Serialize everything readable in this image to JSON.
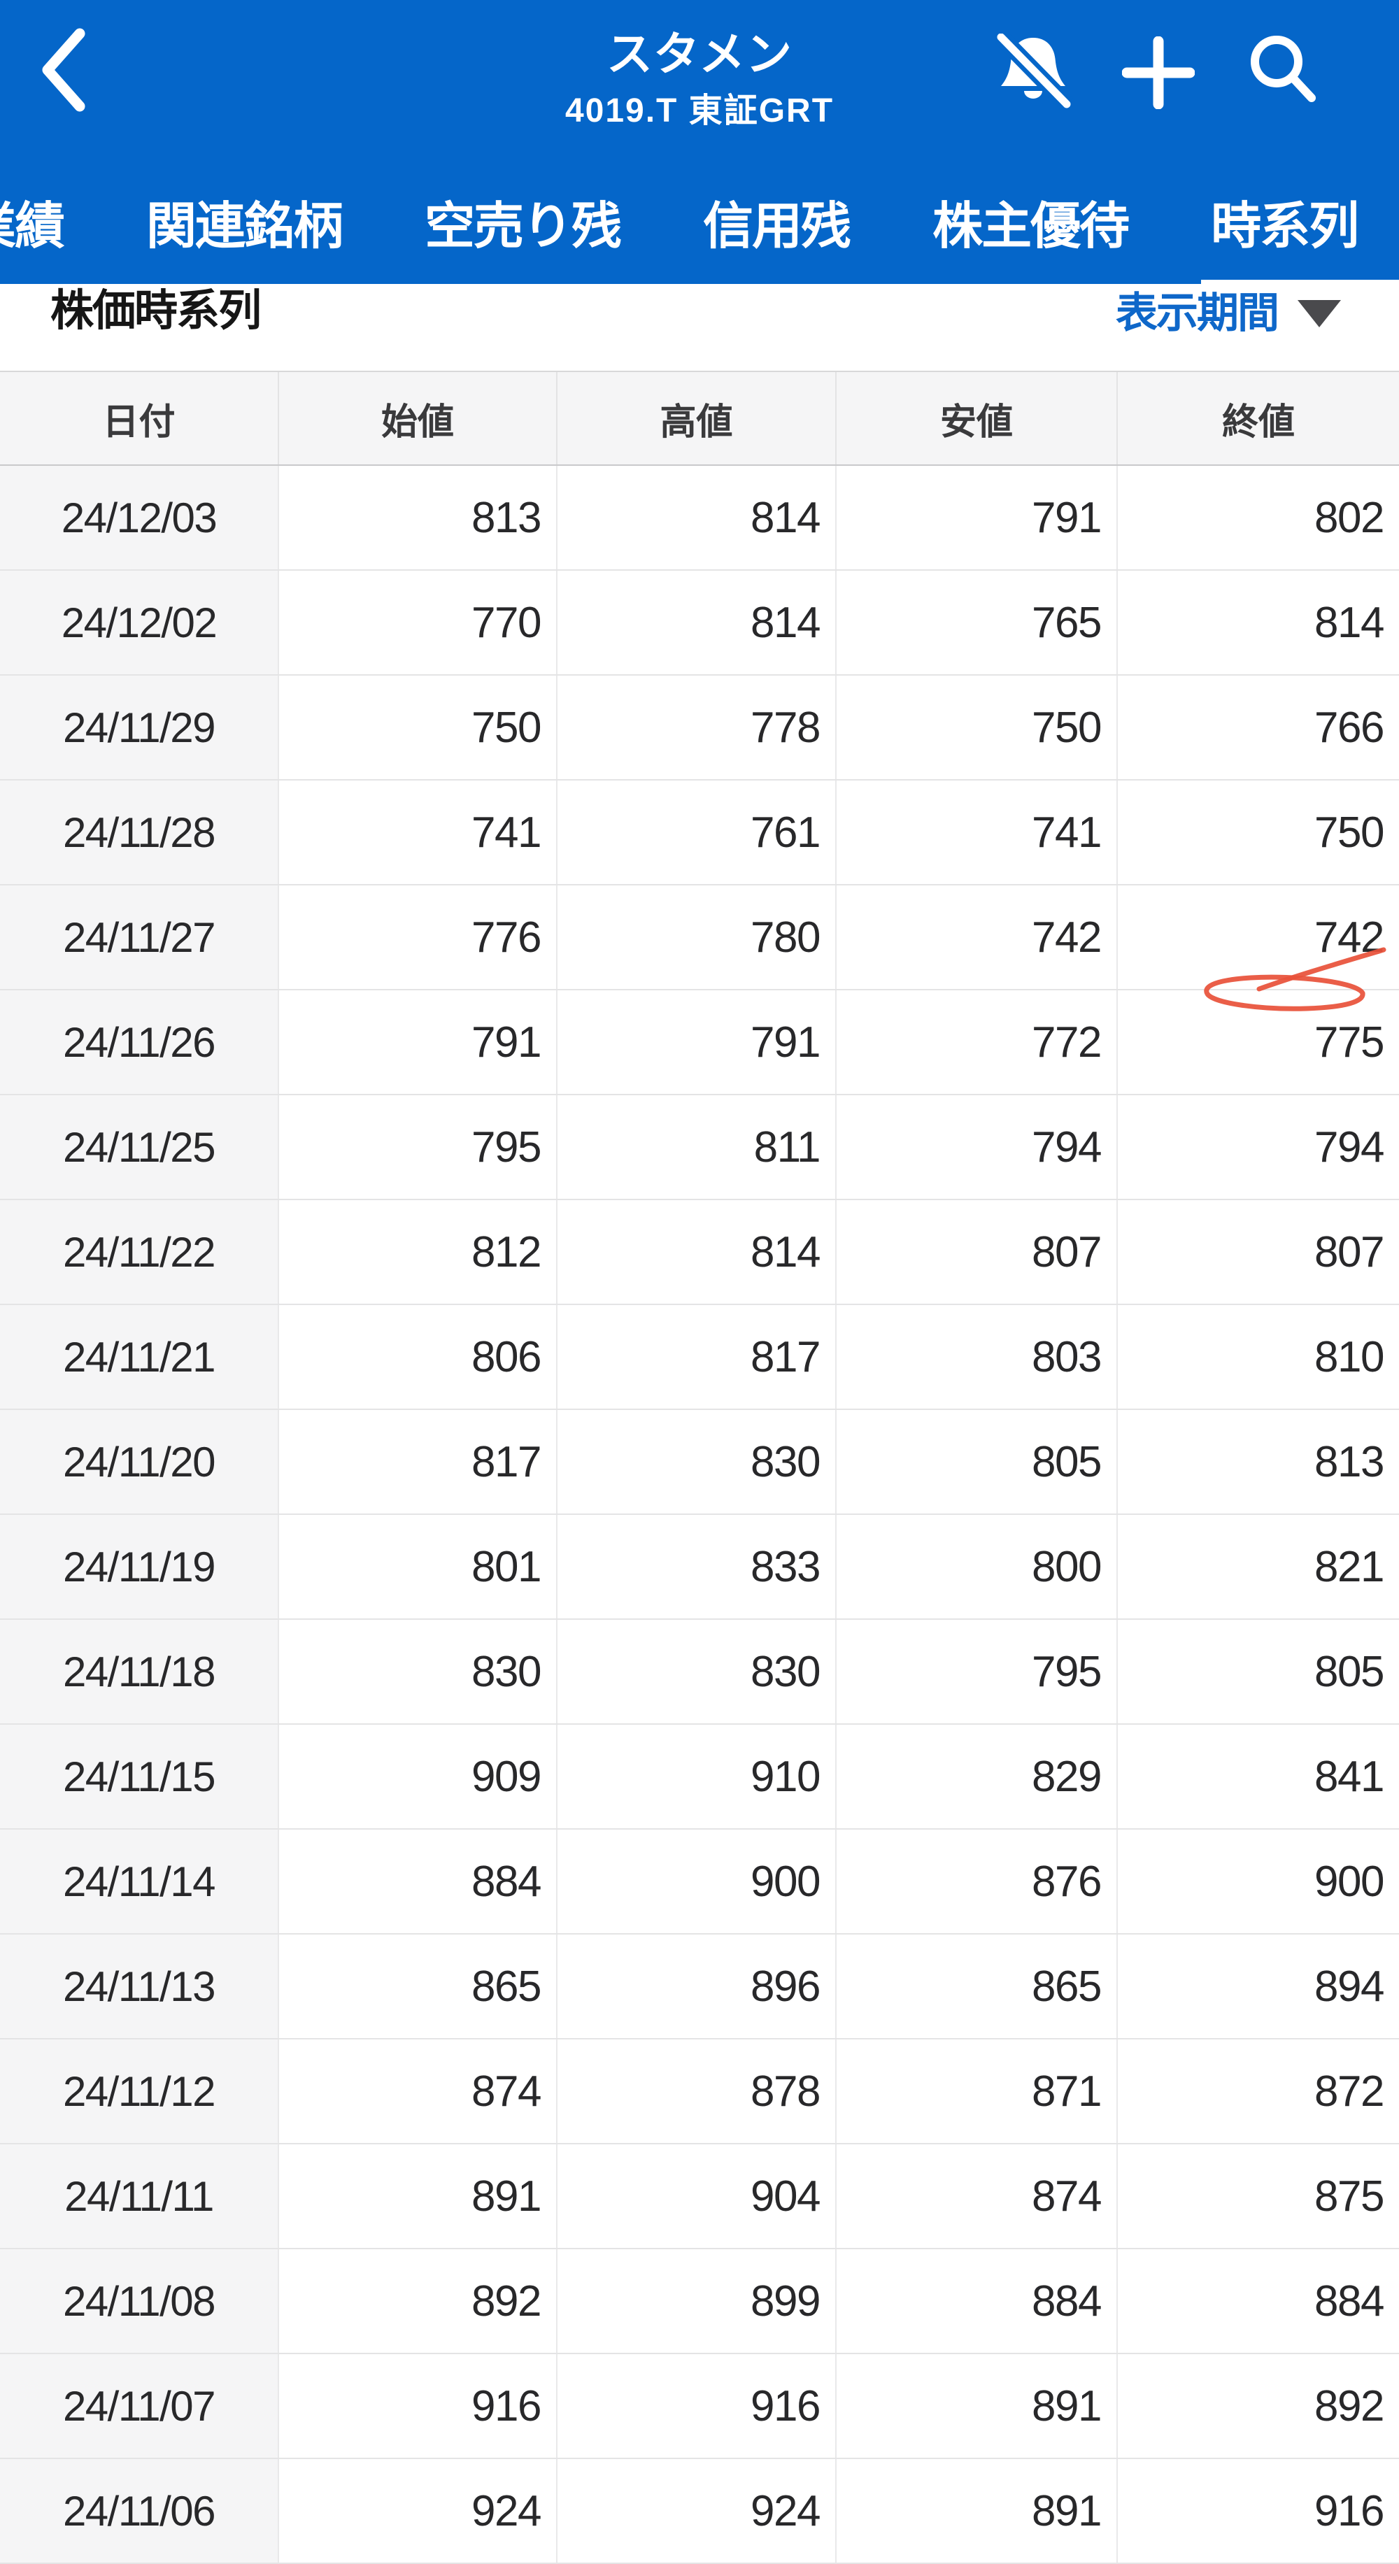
{
  "app": {
    "title": "スタメン",
    "subtitle": "4019.T 東証GRT"
  },
  "header_icons": {
    "back": "chevron-left",
    "notifications_off": "bell-slash",
    "add": "plus",
    "search": "magnifier"
  },
  "tabs": {
    "items": [
      "業績",
      "関連銘柄",
      "空売り残",
      "信用残",
      "株主優待",
      "時系列"
    ],
    "active": "時系列"
  },
  "section": {
    "title": "株価時系列",
    "period_label": "表示期間"
  },
  "table": {
    "columns": [
      "日付",
      "始値",
      "高値",
      "安値",
      "終値"
    ],
    "col_keys": [
      "date",
      "open",
      "high",
      "low",
      "close"
    ],
    "rows": [
      [
        "24/12/03",
        "813",
        "814",
        "791",
        "802"
      ],
      [
        "24/12/02",
        "770",
        "814",
        "765",
        "814"
      ],
      [
        "24/11/29",
        "750",
        "778",
        "750",
        "766"
      ],
      [
        "24/11/28",
        "741",
        "761",
        "741",
        "750"
      ],
      [
        "24/11/27",
        "776",
        "780",
        "742",
        "742"
      ],
      [
        "24/11/26",
        "791",
        "791",
        "772",
        "775"
      ],
      [
        "24/11/25",
        "795",
        "811",
        "794",
        "794"
      ],
      [
        "24/11/22",
        "812",
        "814",
        "807",
        "807"
      ],
      [
        "24/11/21",
        "806",
        "817",
        "803",
        "810"
      ],
      [
        "24/11/20",
        "817",
        "830",
        "805",
        "813"
      ],
      [
        "24/11/19",
        "801",
        "833",
        "800",
        "821"
      ],
      [
        "24/11/18",
        "830",
        "830",
        "795",
        "805"
      ],
      [
        "24/11/15",
        "909",
        "910",
        "829",
        "841"
      ],
      [
        "24/11/14",
        "884",
        "900",
        "876",
        "900"
      ],
      [
        "24/11/13",
        "865",
        "896",
        "865",
        "894"
      ],
      [
        "24/11/12",
        "874",
        "878",
        "871",
        "872"
      ],
      [
        "24/11/11",
        "891",
        "904",
        "874",
        "875"
      ],
      [
        "24/11/08",
        "892",
        "899",
        "884",
        "884"
      ],
      [
        "24/11/07",
        "916",
        "916",
        "891",
        "892"
      ],
      [
        "24/11/06",
        "924",
        "924",
        "891",
        "916"
      ]
    ]
  },
  "annotation": {
    "type": "hand-drawn scribble",
    "target": "24/11/27 close 742",
    "color": "#E8523A"
  },
  "colors": {
    "app_bar_blue": "#0566C9",
    "link_blue": "#0E67C9",
    "caret_gray": "#4A4A4D",
    "header_row_bg": "#F5F5F6",
    "date_col_bg": "#F5F5F6",
    "row_border": "#E4E4E5",
    "text_dark": "#28282A"
  }
}
